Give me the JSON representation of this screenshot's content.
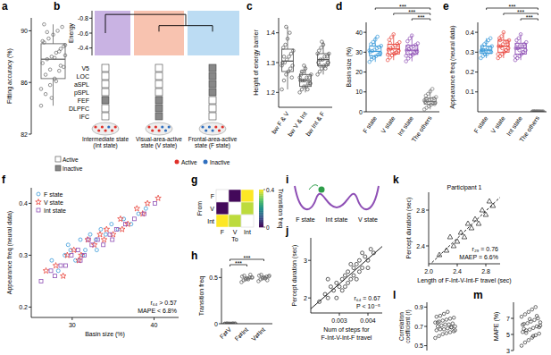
{
  "chart_data": [
    {
      "panel": "a",
      "type": "box",
      "ylabel": "Fitting accuracy (%)",
      "ylim": [
        82,
        91
      ],
      "yticks": [
        82,
        86,
        90
      ],
      "color": "#666666",
      "values": [
        84.2,
        85.1,
        85.8,
        86.3,
        86.9,
        87.2,
        87.5,
        87.8,
        88.0,
        88.3,
        88.6,
        88.9,
        89.1,
        89.4,
        89.7,
        90.0,
        90.3,
        85.5,
        86.6,
        87.0,
        87.9,
        88.4,
        88.8,
        89.2,
        89.9,
        84.8,
        86.1,
        87.3,
        88.1,
        90.5
      ],
      "box": {
        "q1": 86.3,
        "median": 87.8,
        "q3": 89.0,
        "low": 84.2,
        "high": 90.5
      }
    },
    {
      "panel": "b",
      "type": "dendrogram",
      "ylabel": "Energy",
      "ylim": [
        -0.9,
        -0.3
      ],
      "yticks": [
        -0.8,
        -0.6,
        -0.4
      ],
      "merge_heights": [
        -0.85,
        -0.7
      ],
      "regions": [
        "V5",
        "LOC",
        "aSPL",
        "pSPL",
        "FEF",
        "DLPFC",
        "IFC"
      ],
      "states": [
        {
          "name": "Intermediate state (Int state)",
          "color": "#c9b3e3",
          "energy": -0.6,
          "active": [
            true,
            true,
            true,
            true,
            false,
            true,
            true
          ]
        },
        {
          "name": "Visual-area-active state (V state)",
          "color": "#f8c3b0",
          "energy": -0.62,
          "active": [
            true,
            true,
            true,
            true,
            false,
            false,
            false
          ]
        },
        {
          "name": "Frontal-area-active state (F state)",
          "color": "#bcdcf3",
          "energy": -0.62,
          "active": [
            false,
            false,
            false,
            false,
            true,
            true,
            true
          ]
        }
      ],
      "legend_labels": [
        "Active",
        "Inactive"
      ]
    },
    {
      "panel": "c",
      "type": "box",
      "ylabel": "Height of energy barrier",
      "ylim": [
        1.15,
        1.45
      ],
      "yticks": [
        1.2,
        1.3,
        1.4
      ],
      "categories": [
        "bw F & V",
        "bw V & Int",
        "bw Int & F"
      ],
      "colors": [
        "#555555",
        "#555555",
        "#555555"
      ],
      "values": [
        [
          1.21,
          1.24,
          1.26,
          1.27,
          1.28,
          1.29,
          1.3,
          1.3,
          1.31,
          1.32,
          1.33,
          1.34,
          1.35,
          1.36,
          1.38,
          1.4,
          1.25,
          1.29,
          1.32,
          1.42
        ],
        [
          1.2,
          1.21,
          1.22,
          1.22,
          1.23,
          1.23,
          1.24,
          1.24,
          1.24,
          1.25,
          1.25,
          1.26,
          1.26,
          1.27,
          1.28,
          1.21,
          1.23,
          1.25,
          1.27,
          1.29
        ],
        [
          1.26,
          1.27,
          1.28,
          1.29,
          1.29,
          1.3,
          1.3,
          1.31,
          1.31,
          1.32,
          1.32,
          1.33,
          1.34,
          1.35,
          1.36,
          1.28,
          1.3,
          1.33,
          1.29,
          1.37
        ]
      ],
      "box": [
        {
          "q1": 1.27,
          "median": 1.305,
          "q3": 1.345,
          "low": 1.21,
          "high": 1.42
        },
        {
          "q1": 1.22,
          "median": 1.24,
          "q3": 1.26,
          "low": 1.2,
          "high": 1.29
        },
        {
          "q1": 1.29,
          "median": 1.31,
          "q3": 1.33,
          "low": 1.26,
          "high": 1.37
        }
      ]
    },
    {
      "panel": "d",
      "type": "box",
      "ylabel": "Basin size (%)",
      "ylim": [
        0,
        45
      ],
      "yticks": [
        0,
        10,
        20,
        30,
        40
      ],
      "categories": [
        "F state",
        "V state",
        "Int state",
        "The others"
      ],
      "colors": [
        "#3a9ad9",
        "#e8453c",
        "#8e4fb5",
        "#777777"
      ],
      "values": [
        [
          25.1,
          26.4,
          27.2,
          28.0,
          28.8,
          29.5,
          30.1,
          30.6,
          31.2,
          31.9,
          32.5,
          33.2,
          34.0,
          35.1,
          36.3,
          37.8,
          29.0,
          30.9,
          27.6,
          33.7
        ],
        [
          26.0,
          27.3,
          28.4,
          29.2,
          30.0,
          30.7,
          31.3,
          31.9,
          32.6,
          33.3,
          34.1,
          35.0,
          36.2,
          37.5,
          39.0,
          29.6,
          32.1,
          28.8,
          34.6,
          30.4
        ],
        [
          25.4,
          26.8,
          27.9,
          28.7,
          29.5,
          30.3,
          30.9,
          31.5,
          32.2,
          32.9,
          33.6,
          34.4,
          35.5,
          36.9,
          38.4,
          30.0,
          31.2,
          28.2,
          33.1,
          29.9
        ],
        [
          1.2,
          2.0,
          2.8,
          3.5,
          4.1,
          4.6,
          5.0,
          5.4,
          5.9,
          6.3,
          6.8,
          7.4,
          8.1,
          9.0,
          10.2,
          11.5,
          3.9,
          5.7,
          6.6,
          4.4
        ]
      ],
      "box": [
        {
          "q1": 28.2,
          "median": 30.4,
          "q3": 33.0,
          "low": 25.1,
          "high": 37.8
        },
        {
          "q1": 29.1,
          "median": 31.6,
          "q3": 34.0,
          "low": 26.0,
          "high": 39.0
        },
        {
          "q1": 28.9,
          "median": 31.0,
          "q3": 33.4,
          "low": 25.4,
          "high": 38.4
        },
        {
          "q1": 3.8,
          "median": 5.2,
          "q3": 6.9,
          "low": 1.2,
          "high": 11.5
        }
      ],
      "significance": [
        {
          "pair": [
            "Int state",
            "The others"
          ],
          "label": "***"
        },
        {
          "pair": [
            "V state",
            "The others"
          ],
          "label": "***"
        },
        {
          "pair": [
            "F state",
            "The others"
          ],
          "label": "***"
        }
      ]
    },
    {
      "panel": "e",
      "type": "box",
      "ylabel": "Appearance freq (neural data)",
      "ylim": [
        0,
        0.45
      ],
      "yticks": [
        0.1,
        0.2,
        0.3,
        0.4
      ],
      "categories": [
        "F state",
        "V state",
        "Int state",
        "The others"
      ],
      "colors": [
        "#3a9ad9",
        "#e8453c",
        "#8e4fb5",
        "#777777"
      ],
      "values": [
        [
          0.27,
          0.28,
          0.29,
          0.29,
          0.3,
          0.3,
          0.31,
          0.31,
          0.31,
          0.32,
          0.32,
          0.33,
          0.33,
          0.34,
          0.35,
          0.36,
          0.37,
          0.3,
          0.31,
          0.29
        ],
        [
          0.27,
          0.28,
          0.29,
          0.3,
          0.31,
          0.32,
          0.33,
          0.33,
          0.34,
          0.35,
          0.35,
          0.36,
          0.37,
          0.38,
          0.4,
          0.31,
          0.34,
          0.29,
          0.36,
          0.32
        ],
        [
          0.26,
          0.27,
          0.28,
          0.29,
          0.3,
          0.31,
          0.32,
          0.32,
          0.33,
          0.33,
          0.34,
          0.35,
          0.36,
          0.37,
          0.39,
          0.3,
          0.33,
          0.28,
          0.34,
          0.31
        ],
        [
          0.0005,
          0.0008,
          0.001,
          0.0012,
          0.0006,
          0.0009,
          0.0011,
          0.0007,
          0.001,
          0.0013,
          0.0008,
          0.0009,
          0.0012,
          0.0006,
          0.001,
          0.0011,
          0.0007,
          0.0009,
          0.0014,
          0.0008
        ]
      ],
      "box": [
        {
          "q1": 0.295,
          "median": 0.31,
          "q3": 0.33,
          "low": 0.27,
          "high": 0.37
        },
        {
          "q1": 0.3,
          "median": 0.33,
          "q3": 0.36,
          "low": 0.27,
          "high": 0.4
        },
        {
          "q1": 0.29,
          "median": 0.32,
          "q3": 0.345,
          "low": 0.26,
          "high": 0.39
        },
        {
          "q1": 0.0007,
          "median": 0.0009,
          "q3": 0.0011,
          "low": 0.0005,
          "high": 0.0014
        }
      ],
      "significance": [
        {
          "pair": [
            "Int state",
            "The others"
          ],
          "label": "***"
        },
        {
          "pair": [
            "V state",
            "The others"
          ],
          "label": "***"
        },
        {
          "pair": [
            "F state",
            "The others"
          ],
          "label": "***"
        }
      ]
    },
    {
      "panel": "f",
      "type": "scatter",
      "xlabel": "Basin size (%)",
      "ylabel": "Appearance freq (neural data)",
      "xlim": [
        25,
        43
      ],
      "xticks": [
        30,
        40
      ],
      "ylim": [
        0.18,
        0.43
      ],
      "yticks": [
        0.2,
        0.3,
        0.4
      ],
      "series": [
        {
          "name": "F state",
          "color": "#3a9ad9",
          "marker": "circle",
          "x": [
            27.5,
            28.3,
            29.1,
            29.8,
            30.4,
            31.0,
            31.6,
            32.2,
            32.9,
            33.5,
            34.1,
            34.8,
            35.6,
            36.3,
            37.2,
            38.1,
            39.0,
            29.5,
            31.3,
            33.0
          ],
          "values": [
            0.29,
            0.27,
            0.3,
            0.31,
            0.29,
            0.33,
            0.31,
            0.34,
            0.33,
            0.35,
            0.34,
            0.36,
            0.35,
            0.37,
            0.36,
            0.38,
            0.39,
            0.32,
            0.3,
            0.31
          ]
        },
        {
          "name": "V state",
          "color": "#e8453c",
          "marker": "star",
          "x": [
            26.8,
            28.0,
            29.4,
            30.2,
            31.1,
            31.9,
            32.7,
            33.4,
            34.2,
            35.0,
            35.9,
            36.8,
            37.9,
            39.2,
            40.5,
            30.8,
            33.9,
            28.9,
            36.1,
            38.6
          ],
          "values": [
            0.27,
            0.28,
            0.3,
            0.31,
            0.3,
            0.33,
            0.32,
            0.34,
            0.35,
            0.34,
            0.37,
            0.36,
            0.39,
            0.4,
            0.41,
            0.29,
            0.33,
            0.26,
            0.35,
            0.38
          ]
        },
        {
          "name": "Int state",
          "color": "#8e4fb5",
          "marker": "square",
          "x": [
            26.2,
            27.4,
            28.6,
            29.9,
            30.7,
            31.5,
            32.4,
            33.1,
            33.8,
            34.6,
            35.4,
            36.5,
            37.6,
            38.8,
            40.1,
            29.2,
            32.0,
            34.9,
            31.0,
            27.9
          ],
          "values": [
            0.25,
            0.27,
            0.28,
            0.3,
            0.31,
            0.3,
            0.32,
            0.33,
            0.32,
            0.34,
            0.35,
            0.36,
            0.37,
            0.38,
            0.4,
            0.28,
            0.33,
            0.33,
            0.29,
            0.26
          ]
        }
      ],
      "legend": "upper left",
      "annotations": [
        "r₆₄ > 0.57",
        "MAPE < 6.8%"
      ]
    },
    {
      "panel": "g",
      "type": "heatmap",
      "rows": [
        "F",
        "V",
        "Int"
      ],
      "columns": [
        "F",
        "V",
        "Int"
      ],
      "xlabel": "To",
      "ylabel": "From",
      "cells": [
        [
          null,
          0.01,
          0.4
        ],
        [
          0.01,
          null,
          0.36
        ],
        [
          0.4,
          0.36,
          null
        ]
      ],
      "colorbar_label": "Transition freq",
      "colorbar_lim": [
        0,
        0.4
      ],
      "colorbar_ticks": [
        0,
        0.4
      ]
    },
    {
      "panel": "h",
      "type": "strip",
      "ylabel": "Transition freq",
      "ylim": [
        0,
        0.6
      ],
      "yticks": [
        0,
        0.5
      ],
      "categories": [
        "F⇄V",
        "F⇄Int",
        "V⇄Int"
      ],
      "colors": [
        "#555555",
        "#555555",
        "#555555"
      ],
      "values": [
        [
          0.0,
          0.002,
          0.001,
          0.0,
          0.003,
          0.001,
          0.0,
          0.002,
          0.001,
          0.0,
          0.001,
          0.002
        ],
        [
          0.45,
          0.47,
          0.48,
          0.49,
          0.5,
          0.5,
          0.51,
          0.52,
          0.49,
          0.48,
          0.53,
          0.5
        ],
        [
          0.46,
          0.48,
          0.49,
          0.5,
          0.51,
          0.51,
          0.52,
          0.53,
          0.5,
          0.49,
          0.47,
          0.52
        ]
      ],
      "significance": [
        {
          "pair": [
            "F⇄V",
            "F⇄Int"
          ],
          "label": "***"
        },
        {
          "pair": [
            "F⇄V",
            "V⇄Int"
          ],
          "label": "***"
        }
      ]
    },
    {
      "panel": "i",
      "type": "schematic",
      "labels": [
        "F state",
        "Int state",
        "V state"
      ]
    },
    {
      "panel": "j",
      "type": "scatter",
      "xlabel": "Num of steps for F-Int-V-Int-F travel",
      "ylabel": "Percept duration (sec)",
      "xlim": [
        0.002,
        0.0045
      ],
      "xticks": [
        0.003,
        0.004
      ],
      "ylim": [
        1.6,
        3.6
      ],
      "yticks": [
        2,
        3
      ],
      "series": [
        {
          "color": "#333333",
          "marker": "circle",
          "x": [
            0.0023,
            0.0025,
            0.0026,
            0.0027,
            0.0028,
            0.0029,
            0.003,
            0.0031,
            0.0031,
            0.0032,
            0.0033,
            0.0033,
            0.0034,
            0.0035,
            0.0035,
            0.0036,
            0.0037,
            0.0037,
            0.0038,
            0.0039,
            0.004,
            0.0041,
            0.0042,
            0.0026,
            0.0029,
            0.0032,
            0.0034,
            0.0036,
            0.0038,
            0.004
          ],
          "values": [
            1.9,
            2.1,
            2.0,
            2.3,
            2.2,
            2.4,
            2.3,
            2.5,
            2.2,
            2.6,
            2.4,
            2.7,
            2.5,
            2.8,
            2.6,
            2.9,
            2.7,
            3.0,
            2.8,
            3.1,
            3.0,
            3.3,
            3.2,
            2.5,
            2.0,
            2.3,
            2.9,
            2.5,
            3.2,
            2.8
          ]
        }
      ],
      "annotations": [
        "r₆₄ = 0.67",
        "P < 10⁻⁵"
      ]
    },
    {
      "panel": "k",
      "type": "scatter",
      "title": "Participant 1",
      "xlabel": "Length of F-Int-V-Int-F travel (sec)",
      "ylabel": "Percept duration (sec)",
      "xlim": [
        2.0,
        3.0
      ],
      "xticks": [
        {
          "value": 2,
          "label": "2.0"
        },
        2.4,
        2.8
      ],
      "ylim": [
        2.2,
        3.0
      ],
      "yticks": [
        2.4,
        2.8
      ],
      "series": [
        {
          "color": "#333333",
          "marker": "triangle",
          "x": [
            2.15,
            2.25,
            2.3,
            2.35,
            2.4,
            2.45,
            2.5,
            2.55,
            2.6,
            2.65,
            2.7,
            2.75,
            2.8,
            2.85,
            2.9
          ],
          "values": [
            2.3,
            2.35,
            2.5,
            2.4,
            2.45,
            2.55,
            2.5,
            2.65,
            2.6,
            2.7,
            2.65,
            2.8,
            2.75,
            2.9,
            2.85
          ]
        }
      ],
      "annotations": [
        "r₂₉ = 0.76",
        "MAEP = 6.6%"
      ]
    },
    {
      "panel": "l",
      "type": "strip",
      "ylabel": "Correlation coefficient (r)",
      "ylim": [
        0.45,
        0.95
      ],
      "yticks": [
        0.5,
        0.7,
        0.9
      ],
      "color": "#333333",
      "values": [
        0.58,
        0.6,
        0.62,
        0.63,
        0.64,
        0.65,
        0.66,
        0.67,
        0.67,
        0.68,
        0.69,
        0.7,
        0.7,
        0.71,
        0.72,
        0.72,
        0.73,
        0.74,
        0.75,
        0.76,
        0.77,
        0.78,
        0.79,
        0.8,
        0.81,
        0.83,
        0.85,
        0.69,
        0.66,
        0.74
      ]
    },
    {
      "panel": "m",
      "type": "strip",
      "ylabel": "MAPE (%)",
      "ylim": [
        3,
        9
      ],
      "yticks": [
        3,
        5,
        7
      ],
      "color": "#333333",
      "values": [
        3.6,
        4.0,
        4.3,
        4.6,
        4.9,
        5.1,
        5.3,
        5.5,
        5.6,
        5.8,
        6.0,
        6.1,
        6.3,
        6.4,
        6.6,
        6.8,
        7.0,
        7.2,
        7.5,
        7.8,
        8.1,
        8.4,
        5.9,
        6.2,
        5.2,
        6.9,
        4.8,
        7.3,
        6.5,
        5.7
      ]
    }
  ]
}
